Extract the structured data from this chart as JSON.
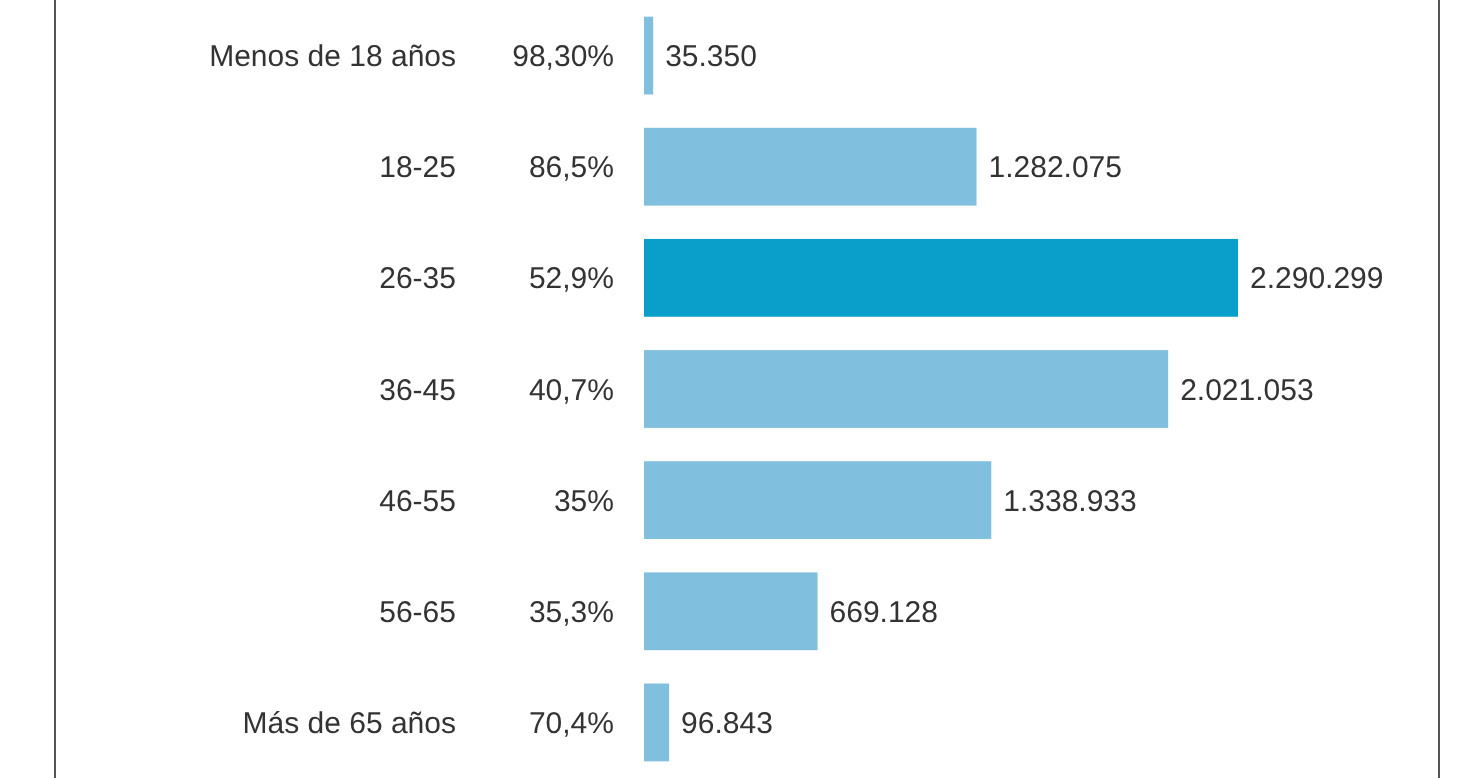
{
  "chart_data": {
    "type": "bar",
    "orientation": "horizontal",
    "categories": [
      "Menos de 18 años",
      "18-25",
      "26-35",
      "36-45",
      "46-55",
      "56-65",
      "Más de 65 años"
    ],
    "values": [
      35350,
      1282075,
      2290299,
      2021053,
      1338933,
      669128,
      96843
    ],
    "value_labels": [
      "35.350",
      "1.282.075",
      "2.290.299",
      "2.021.053",
      "1.338.933",
      "669.128",
      "96.843"
    ],
    "colors": [
      "#80bfde",
      "#80bfde",
      "#0a9ecb",
      "#80bfde",
      "#80bfde",
      "#80bfde",
      "#80bfde"
    ],
    "annotations": [
      "98,30%",
      "86,5%",
      "52,9%",
      "40,7%",
      "35%",
      "35,3%",
      "70,4%"
    ]
  }
}
